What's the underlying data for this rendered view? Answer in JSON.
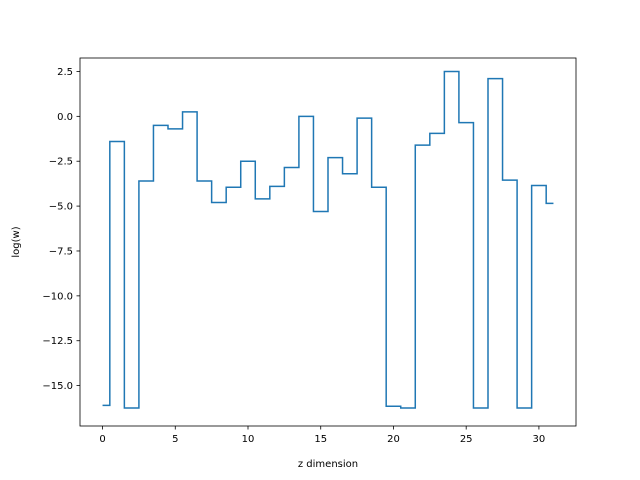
{
  "chart_data": {
    "type": "line",
    "step": "mid",
    "title": "",
    "xlabel": "z dimension",
    "ylabel": "log(w)",
    "xlim": [
      -1.55,
      32.55
    ],
    "ylim": [
      -17.25,
      3.25
    ],
    "xticks": [
      0,
      5,
      10,
      15,
      20,
      25,
      30
    ],
    "xtick_labels": [
      "0",
      "5",
      "10",
      "15",
      "20",
      "25",
      "30"
    ],
    "yticks": [
      2.5,
      0.0,
      -2.5,
      -5.0,
      -7.5,
      -10.0,
      -12.5,
      -15.0
    ],
    "ytick_labels": [
      "2.5",
      "0.0",
      "−2.5",
      "−5.0",
      "−7.5",
      "−10.0",
      "−12.5",
      "−15.0"
    ],
    "grid": false,
    "series": [
      {
        "color": "#1f77b4",
        "x": [
          0,
          1,
          2,
          3,
          4,
          5,
          6,
          7,
          8,
          9,
          10,
          11,
          12,
          13,
          14,
          15,
          16,
          17,
          18,
          19,
          20,
          21,
          22,
          23,
          24,
          25,
          26,
          27,
          28,
          29,
          30,
          31
        ],
        "y": [
          -16.1,
          -1.4,
          -16.25,
          -3.6,
          -0.5,
          -0.7,
          0.25,
          -3.6,
          -4.8,
          -3.95,
          -2.5,
          -4.6,
          -3.9,
          -2.85,
          0.0,
          -5.3,
          -2.3,
          -3.2,
          -0.1,
          -3.95,
          -16.15,
          -16.25,
          -1.6,
          -0.95,
          2.5,
          -0.35,
          -16.25,
          2.1,
          -3.55,
          -16.25,
          -3.85,
          -4.85
        ]
      }
    ]
  }
}
